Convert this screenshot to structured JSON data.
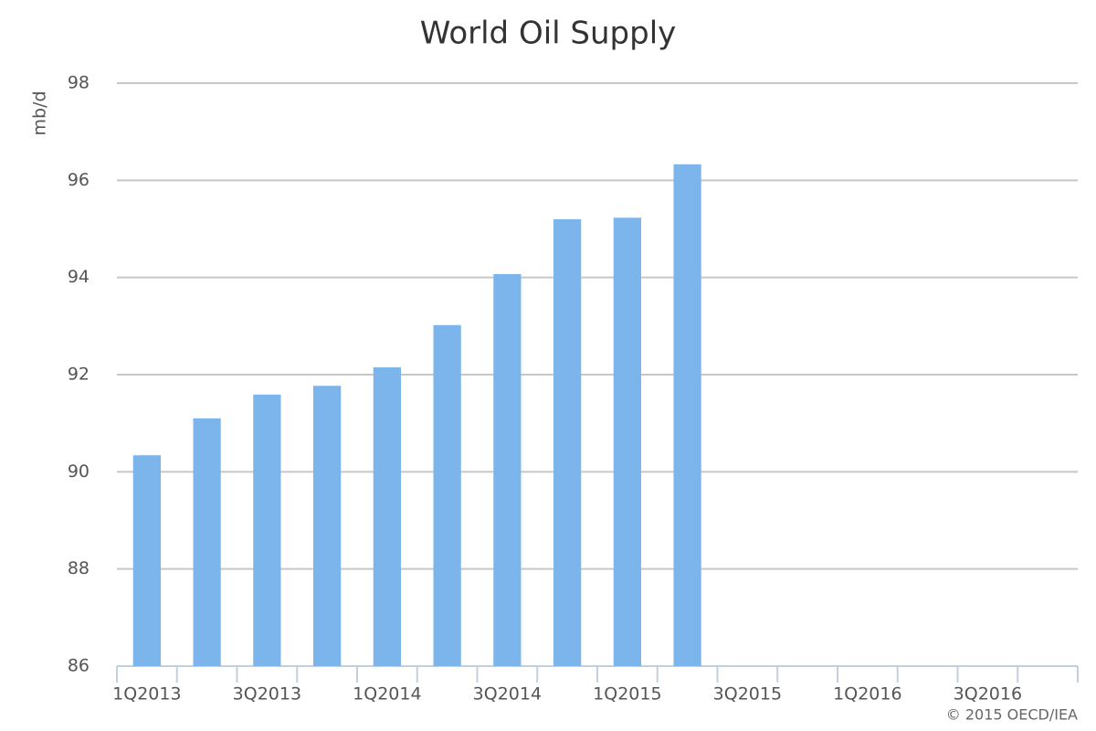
{
  "chart_data": {
    "type": "bar",
    "title": "World Oil Supply",
    "y_label": "mb/d",
    "credit": "© 2015 OECD/IEA",
    "categories": [
      "1Q2013",
      null,
      "3Q2013",
      null,
      "1Q2014",
      null,
      "3Q2014",
      null,
      "1Q2015",
      null,
      "3Q2015",
      null,
      "1Q2016",
      null,
      "3Q2016",
      null
    ],
    "values": [
      90.34,
      91.1,
      91.59,
      91.77,
      92.15,
      93.02,
      94.07,
      95.2,
      95.23,
      96.33,
      null,
      null,
      null,
      null,
      null,
      null
    ],
    "color": "#7cb5ec",
    "ylim": [
      86,
      98
    ],
    "yticks": [
      86,
      88,
      90,
      92,
      94,
      96,
      98
    ],
    "grid": true
  }
}
